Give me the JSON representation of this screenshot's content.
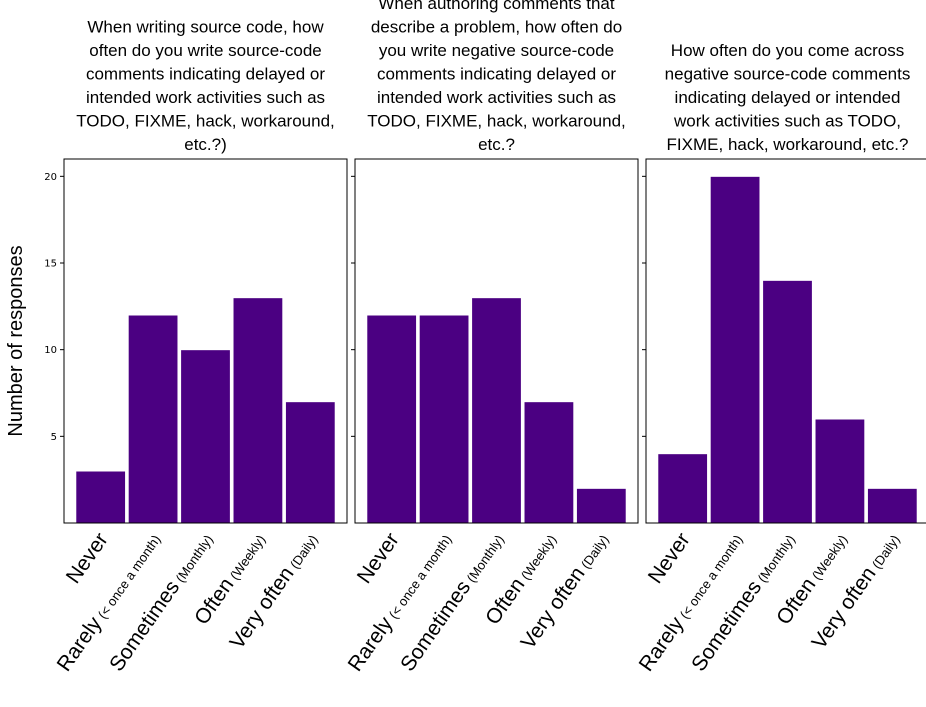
{
  "chart_data": {
    "type": "bar",
    "ylabel": "Number of responses",
    "ylim": [
      0,
      21
    ],
    "yticks": [
      5,
      10,
      15,
      20
    ],
    "bar_color": "#4b0082",
    "categories": [
      {
        "main": "Never",
        "sub": ""
      },
      {
        "main": "Rarely",
        "sub": "(< once a month)"
      },
      {
        "main": "Sometimes",
        "sub": "(Monthly)"
      },
      {
        "main": "Often",
        "sub": "(Weekly)"
      },
      {
        "main": "Very often",
        "sub": "(Daily)"
      }
    ],
    "panels": [
      {
        "title_lines": [
          "When  writing source code, how",
          "often do you write source-code",
          "comments indicating delayed or",
          "intended work activities such as",
          "TODO, FIXME, hack, workaround,",
          "etc.?)"
        ],
        "values": [
          3,
          12,
          10,
          13,
          7
        ]
      },
      {
        "title_lines": [
          "When authoring comments that",
          "describe a problem, how often do",
          "you write negative source-code",
          "comments indicating delayed or",
          "intended work activities such as",
          "TODO, FIXME, hack, workaround,",
          "etc.?"
        ],
        "values": [
          12,
          12,
          13,
          7,
          2
        ]
      },
      {
        "title_lines": [
          "How often do you come across",
          "negative source-code comments",
          "indicating delayed or intended",
          "work activities such as TODO,",
          "FIXME, hack, workaround, etc.?"
        ],
        "values": [
          4,
          20,
          14,
          6,
          2
        ]
      }
    ]
  }
}
